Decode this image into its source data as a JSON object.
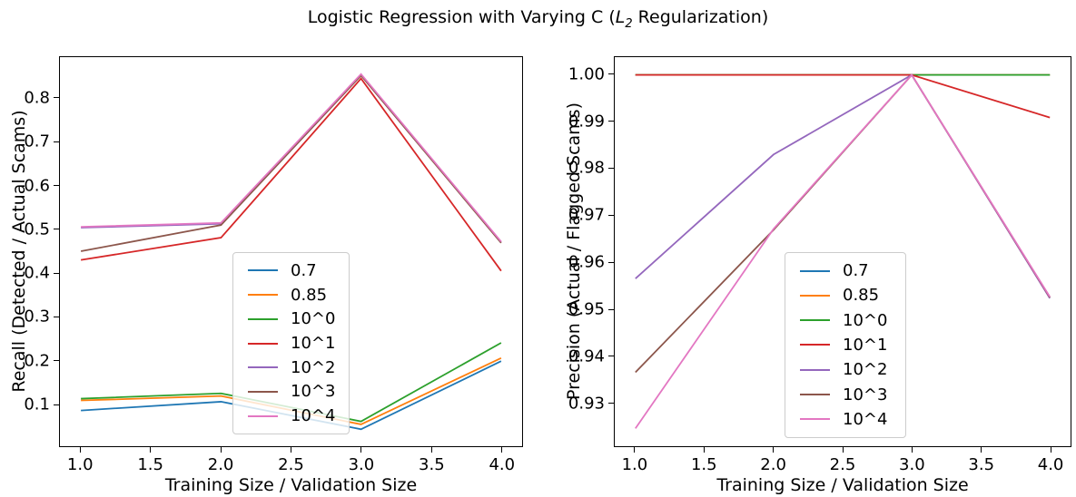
{
  "figure": {
    "title": {
      "prefix": "Logistic Regression with Varying C (",
      "var": "L",
      "sub": "2",
      "suffix": " Regularization)"
    },
    "background": "#ffffff",
    "text_color": "#000000"
  },
  "chart_data": [
    {
      "type": "line",
      "title": "",
      "xlabel": "Training Size / Validation Size",
      "ylabel": "Recall (Detected / Actual Scams)",
      "x": [
        1.0,
        2.0,
        3.0,
        4.0
      ],
      "xlim": [
        0.85,
        4.15
      ],
      "ylim": [
        0.003,
        0.895
      ],
      "xtick_values": [
        1.0,
        1.5,
        2.0,
        2.5,
        3.0,
        3.5,
        4.0
      ],
      "xtick_labels": [
        "1.0",
        "1.5",
        "2.0",
        "2.5",
        "3.0",
        "3.5",
        "4.0"
      ],
      "ytick_values": [
        0.1,
        0.2,
        0.3,
        0.4,
        0.5,
        0.6,
        0.7,
        0.8
      ],
      "ytick_labels": [
        "0.1",
        "0.2",
        "0.3",
        "0.4",
        "0.5",
        "0.6",
        "0.7",
        "0.8"
      ],
      "grid": false,
      "legend_position": "lower-center-inside",
      "series": [
        {
          "name": "0.7",
          "color": "#1f77b4",
          "values": [
            0.085,
            0.105,
            0.042,
            0.198
          ]
        },
        {
          "name": "0.85",
          "color": "#ff7f0e",
          "values": [
            0.108,
            0.118,
            0.053,
            0.205
          ]
        },
        {
          "name": "10^0",
          "color": "#2ca02c",
          "values": [
            0.112,
            0.124,
            0.06,
            0.24
          ]
        },
        {
          "name": "10^1",
          "color": "#d62728",
          "values": [
            0.43,
            0.481,
            0.846,
            0.405
          ]
        },
        {
          "name": "10^2",
          "color": "#9467bd",
          "values": [
            0.504,
            0.513,
            0.855,
            0.471
          ]
        },
        {
          "name": "10^3",
          "color": "#8c564b",
          "values": [
            0.45,
            0.51,
            0.853,
            0.469
          ]
        },
        {
          "name": "10^4",
          "color": "#e377c2",
          "values": [
            0.506,
            0.515,
            0.856,
            0.472
          ]
        }
      ]
    },
    {
      "type": "line",
      "title": "",
      "xlabel": "Training Size / Validation Size",
      "ylabel": "Precision (Actual / Flagged Scams)",
      "x": [
        1.0,
        2.0,
        3.0,
        4.0
      ],
      "xlim": [
        0.85,
        4.15
      ],
      "ylim": [
        0.9207,
        1.0038
      ],
      "xtick_values": [
        1.0,
        1.5,
        2.0,
        2.5,
        3.0,
        3.5,
        4.0
      ],
      "xtick_labels": [
        "1.0",
        "1.5",
        "2.0",
        "2.5",
        "3.0",
        "3.5",
        "4.0"
      ],
      "ytick_values": [
        0.93,
        0.94,
        0.95,
        0.96,
        0.97,
        0.98,
        0.99,
        1.0
      ],
      "ytick_labels": [
        "0.93",
        "0.94",
        "0.95",
        "0.96",
        "0.97",
        "0.98",
        "0.99",
        "1.00"
      ],
      "grid": false,
      "legend_position": "lower-center-inside",
      "series": [
        {
          "name": "0.7",
          "color": "#1f77b4",
          "values": [
            1.0,
            1.0,
            1.0,
            1.0
          ]
        },
        {
          "name": "0.85",
          "color": "#ff7f0e",
          "values": [
            1.0,
            1.0,
            1.0,
            1.0
          ]
        },
        {
          "name": "10^0",
          "color": "#2ca02c",
          "values": [
            1.0,
            1.0,
            1.0,
            1.0
          ]
        },
        {
          "name": "10^1",
          "color": "#d62728",
          "values": [
            1.0,
            1.0,
            1.0,
            0.9909
          ]
        },
        {
          "name": "10^2",
          "color": "#9467bd",
          "values": [
            0.9565,
            0.983,
            1.0,
            0.9523
          ]
        },
        {
          "name": "10^3",
          "color": "#8c564b",
          "values": [
            0.9365,
            0.9669,
            1.0,
            0.9525
          ]
        },
        {
          "name": "10^4",
          "color": "#e377c2",
          "values": [
            0.9245,
            0.9671,
            1.0,
            0.9526
          ]
        }
      ]
    }
  ]
}
